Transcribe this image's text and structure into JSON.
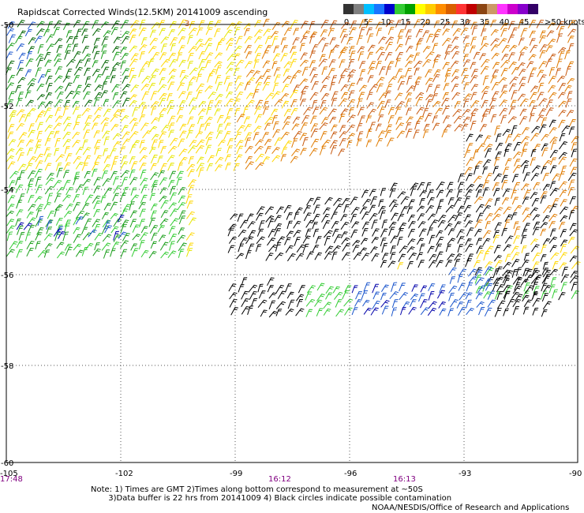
{
  "title": "Rapidscat Corrected Winds(12.5KM) 20141009 ascending",
  "legend": {
    "swatches": [
      {
        "color": "#333333"
      },
      {
        "color": "#808080"
      },
      {
        "color": "#00bfff"
      },
      {
        "color": "#1a75ff"
      },
      {
        "color": "#0000cc"
      },
      {
        "color": "#33cc33"
      },
      {
        "color": "#00a000"
      },
      {
        "color": "#ffff00"
      },
      {
        "color": "#ffcc00"
      },
      {
        "color": "#ff8c00"
      },
      {
        "color": "#d95f00"
      },
      {
        "color": "#ff3333"
      },
      {
        "color": "#c00000"
      },
      {
        "color": "#8b4513"
      },
      {
        "color": "#cc9966"
      },
      {
        "color": "#ff33ff"
      },
      {
        "color": "#cc00cc"
      },
      {
        "color": "#8800cc"
      },
      {
        "color": "#330066"
      }
    ],
    "labels": [
      "0",
      "5",
      "10",
      "15",
      "20",
      "25",
      "30",
      "35",
      "40",
      "45",
      ">50 knots"
    ]
  },
  "map": {
    "lon_ticks": [
      "-105",
      "-102",
      "-99",
      "-96",
      "-93",
      "-90"
    ],
    "lat_ticks": [
      "-50",
      "-52",
      "-54",
      "-56",
      "-58",
      "-60"
    ],
    "times": [
      "17:48",
      "16:12",
      "16:13"
    ],
    "overlay": "3",
    "wind_colors": {
      "yellow": "#ffd700",
      "lemon": "#e6e600",
      "orange": "#e07b00",
      "rust": "#c85a10",
      "green": "#1a9e1a",
      "darkgreen": "#006400",
      "lime": "#33cc33",
      "blue": "#1a55cc",
      "navy": "#0000aa",
      "black": "#000000"
    }
  },
  "notes": {
    "line1": "Note: 1) Times are GMT 2)Times along bottom correspond to measurement at ~50S",
    "line2": "3)Data buffer is 22 hrs from 20141009 4) Black circles indicate possible contamination"
  },
  "credit": "NOAA/NESDIS/Office of Research and Applications"
}
